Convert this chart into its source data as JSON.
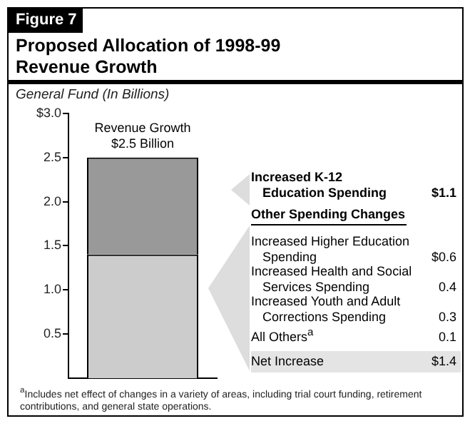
{
  "chart_data": {
    "type": "bar",
    "title": "Proposed Allocation of 1998-99 Revenue Growth",
    "ylabel": "General Fund (In Billions)",
    "categories": [
      null
    ],
    "stacked": true,
    "series": [
      {
        "color": "#cccccc",
        "values": [
          1.4
        ]
      },
      {
        "color": "#999999",
        "values": [
          1.1
        ]
      }
    ],
    "ylim": [
      0,
      3
    ],
    "yticks": [
      {
        "value": 0.5,
        "label": "0.5"
      },
      {
        "value": 1,
        "label": "1.0"
      },
      {
        "value": 1.5,
        "label": "1.5"
      },
      {
        "value": 2,
        "label": "2.0"
      },
      {
        "value": 2.5,
        "label": "2.5"
      },
      {
        "value": 3,
        "label": "$3.0"
      }
    ],
    "grid": false,
    "legend": false,
    "tick_labels": "y",
    "annotations": [
      "Figure 7",
      "Revenue Growth",
      "$2.5 Billion",
      "Increased K-12 Education Spending",
      "$1.1",
      "Other Spending Changes",
      "Increased Higher Education Spending",
      "$0.6",
      "Increased Health and Social Services Spending",
      "0.4",
      "Increased Youth and Adult Corrections Spending",
      "0.3",
      "All Others$^{a}$",
      "0.1",
      "Net Increase",
      "$1.4",
      "$^{a}$Includes net effect of changes in a variety of areas, including trial court funding, retirement contributions, and general state operations."
    ]
  }
}
